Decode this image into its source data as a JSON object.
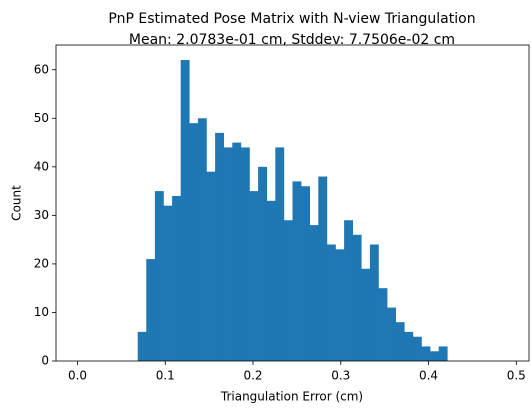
{
  "chart_data": {
    "type": "histogram",
    "title": "PnP Estimated Pose Matrix with N-view Triangulation",
    "subtitle": "Mean: 2.0783e-01 cm, Stddev: 7.7506e-02 cm",
    "x_label": "Triangulation Error (cm)",
    "y_label": "Count",
    "color": "#1f77b4",
    "bins": [
      0.0686,
      0.0784,
      0.0882,
      0.098,
      0.1078,
      0.1176,
      0.1274,
      0.1372,
      0.147,
      0.1568,
      0.1666,
      0.1764,
      0.1862,
      0.196,
      0.2058,
      0.2156,
      0.2254,
      0.2352,
      0.245,
      0.2548,
      0.2646,
      0.2744,
      0.2842,
      0.294,
      0.3038,
      0.3136,
      0.3234,
      0.3332,
      0.343,
      0.3528,
      0.3626,
      0.3724,
      0.3822,
      0.392,
      0.4018,
      0.4116,
      0.4214
    ],
    "values": [
      6,
      21,
      35,
      32,
      34,
      62,
      49,
      50,
      39,
      47,
      44,
      45,
      44,
      35,
      40,
      33,
      44,
      29,
      37,
      36,
      28,
      38,
      24,
      23,
      29,
      26,
      19,
      24,
      15,
      11,
      8,
      6,
      5,
      3,
      2,
      3
    ],
    "xlim": [
      -0.0245,
      0.5145
    ],
    "ylim": [
      0,
      65.1
    ],
    "xticks": [
      {
        "value": 0,
        "label": "0.0"
      },
      0.1,
      0.2,
      0.3,
      0.4,
      0.5
    ],
    "yticks": [
      0,
      10,
      20,
      30,
      40,
      50,
      60
    ]
  }
}
